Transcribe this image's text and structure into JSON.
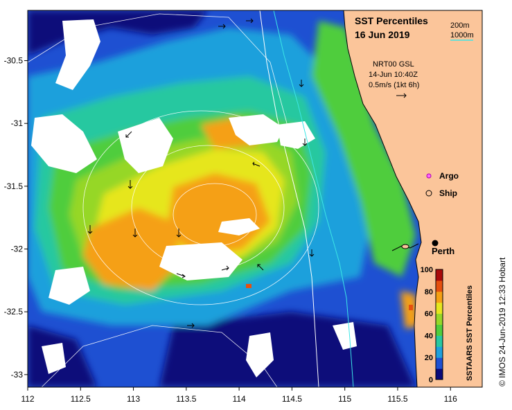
{
  "title": "SST Percentiles",
  "date": "16 Jun 2019",
  "depth_legend": {
    "shallow": "200m",
    "deep": "1000m"
  },
  "current_info": {
    "source": "NRT00 GSL",
    "time": "14-Jun 10:40Z",
    "scale": "0.5m/s (1kt 6h)"
  },
  "markers": {
    "argo": "Argo",
    "ship": "Ship",
    "city": "Perth"
  },
  "colorbar": {
    "title": "SSTAARS SST Percentiles",
    "ticks": [
      "0",
      "20",
      "40",
      "60",
      "80",
      "100"
    ]
  },
  "credit": "© IMOS 24-Jun-2019 12:33 Hobart",
  "axes": {
    "x_ticks": [
      "112",
      "112.5",
      "113",
      "113.5",
      "114",
      "114.5",
      "115",
      "115.5",
      "116"
    ],
    "y_ticks": [
      "-30.5",
      "-31",
      "-31.5",
      "-32",
      "-32.5",
      "-33"
    ],
    "x_range": [
      112,
      116.3
    ],
    "y_range": [
      -33.1,
      -30.1
    ]
  },
  "colors": {
    "land": "#fbc59a",
    "c0": "#0a0a7a",
    "c1": "#1e50d2",
    "c2": "#1ea0dc",
    "c3": "#28c8a0",
    "c4": "#50cd3c",
    "c5": "#96d728",
    "c6": "#e6e61e",
    "c7": "#f5a014",
    "c8": "#e6500f",
    "c9": "#aa0a0a",
    "contour_shallow": "#3ce6e6",
    "contour_deep": "#ffffff"
  }
}
